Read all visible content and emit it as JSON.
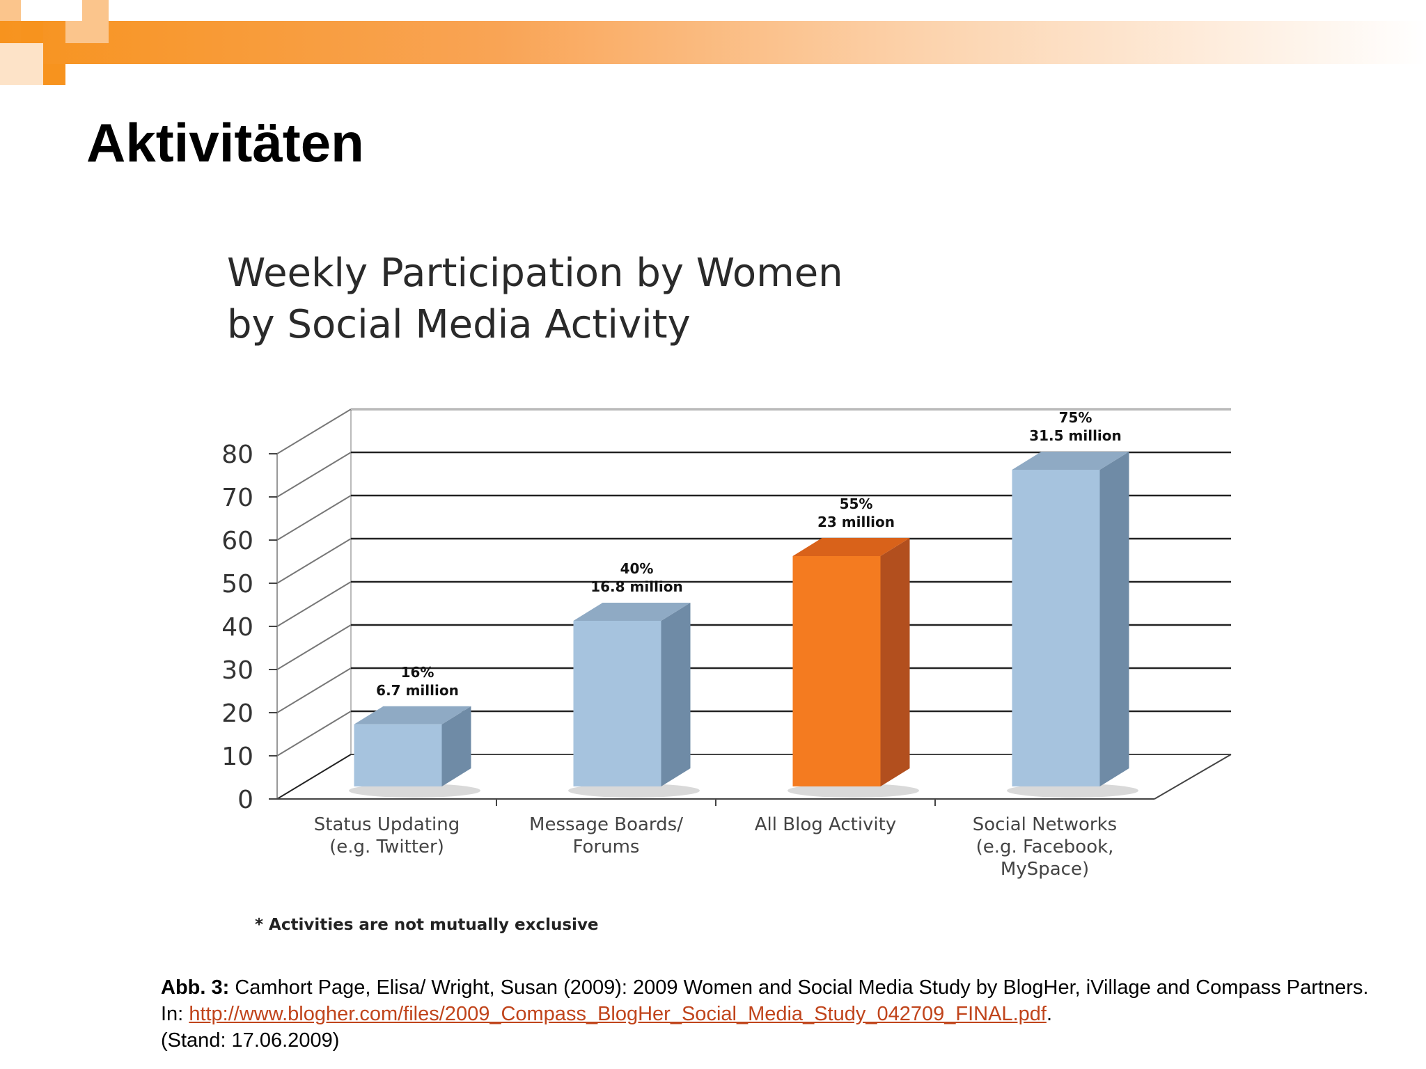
{
  "slide": {
    "title": "Aktivitäten"
  },
  "chart_data": {
    "type": "bar",
    "title_lines": [
      "Weekly Participation by Women",
      "by Social Media Activity"
    ],
    "categories": [
      [
        "Status Updating",
        "(e.g. Twitter)"
      ],
      [
        "Message Boards/",
        "Forums"
      ],
      [
        "All Blog Activity"
      ],
      [
        "Social Networks",
        "(e.g. Facebook,",
        "MySpace)"
      ]
    ],
    "values": [
      16,
      40,
      55,
      75
    ],
    "data_labels": [
      [
        "16%",
        "6.7 million"
      ],
      [
        "40%",
        "16.8 million"
      ],
      [
        "55%",
        "23 million"
      ],
      [
        "75%",
        "31.5 million"
      ]
    ],
    "highlight_index": 2,
    "colors": {
      "bar": "#a6c3de",
      "bar_side": "#6f8ba6",
      "bar_top": "#8faac4",
      "highlight": "#f47b20",
      "highlight_side": "#b24f1e",
      "highlight_top": "#d9621a"
    },
    "y_ticks": [
      0,
      10,
      20,
      30,
      40,
      50,
      60,
      70,
      80
    ],
    "ylim": [
      0,
      80
    ],
    "grid": true,
    "three_d": true,
    "note": "* Activities are not mutually exclusive"
  },
  "caption": {
    "label": "Abb. 3:",
    "text": " Camhort Page, Elisa/ Wright, Susan (2009): 2009 Women and Social  Media Study by BlogHer, iVillage and Compass Partners. In:  ",
    "link": "http://www.blogher.com/files/2009_Compass_BlogHer_Social_Media_Study_042709_FINAL.pdf",
    "after_link": ".",
    "stand": "(Stand: 17.06.2009)"
  },
  "theme": {
    "accent_orange": "#f7931e",
    "accent_light": "#fbc58c"
  }
}
